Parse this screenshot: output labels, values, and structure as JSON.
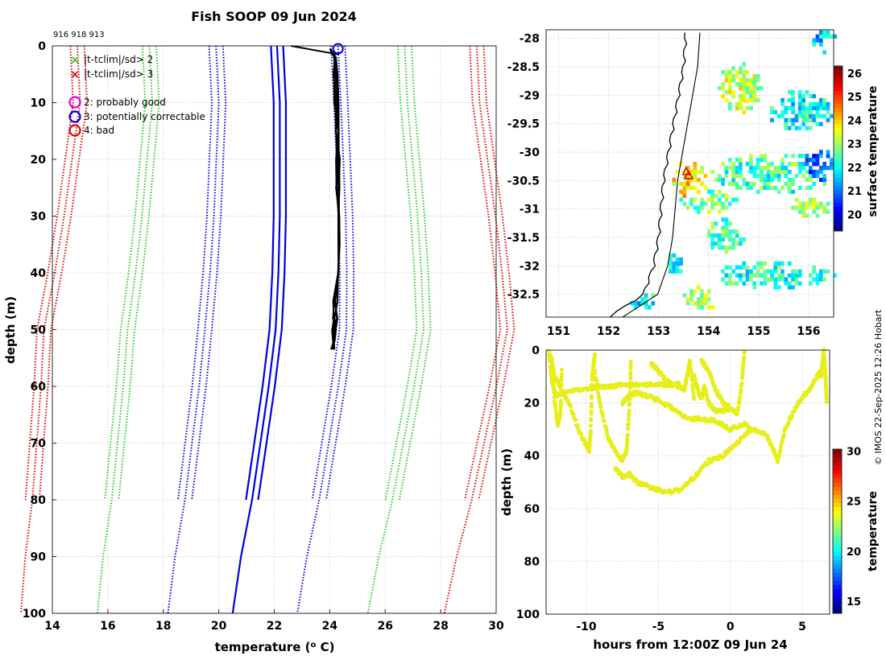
{
  "figure": {
    "title": "Fish SOOP 09 Jun 2024",
    "ids": "916 918 913",
    "copyright": "© IMOS 22-Sep-2025 12:26 Hobart"
  },
  "chart_data": [
    {
      "id": "profile",
      "type": "line",
      "xlabel": "temperature (",
      "xlabel_sup": "o",
      "xlabel_end": " C)",
      "ylabel": "depth (m)",
      "xlim": [
        14,
        30
      ],
      "ylim": [
        100,
        0
      ],
      "xticks": [
        14,
        16,
        18,
        20,
        22,
        24,
        26,
        28,
        30
      ],
      "yticks": [
        0,
        10,
        20,
        30,
        40,
        50,
        60,
        70,
        80,
        90,
        100
      ],
      "legend": [
        {
          "marker": "x",
          "color": "#22cc22",
          "label": "|t-tclim|/sd> 2"
        },
        {
          "marker": "x",
          "color": "#dd0000",
          "label": "|t-tclim|/sd> 3"
        },
        {
          "marker": "o",
          "color": "#dd00dd",
          "label": "2: probably good"
        },
        {
          "marker": "o",
          "color": "#0000dd",
          "label": "3: potentially correctable"
        },
        {
          "marker": "o",
          "color": "#dd0000",
          "label": "4: bad"
        }
      ],
      "climatology": {
        "depth": [
          0,
          10,
          20,
          30,
          40,
          50,
          60,
          70,
          80,
          90,
          100
        ],
        "mean": [
          22.1,
          22.2,
          22.2,
          22.2,
          22.15,
          22.05,
          21.8,
          21.5,
          21.2,
          20.8,
          20.5
        ],
        "offsets": [
          -7.2,
          -4.6,
          -2.2,
          2.2,
          4.6,
          7.2
        ],
        "offset_colors": [
          "#dd0000",
          "#22cc22",
          "#0000dd",
          "#0000dd",
          "#22cc22",
          "#dd0000"
        ],
        "solid_to_depth": 80
      },
      "observed": {
        "color": "#000000",
        "depth": [
          0.5,
          2,
          5,
          10,
          15,
          20,
          25,
          30,
          35,
          40,
          45,
          48,
          50,
          52,
          53.5
        ],
        "temp": [
          24.1,
          24.2,
          24.2,
          24.25,
          24.3,
          24.3,
          24.3,
          24.3,
          24.3,
          24.25,
          24.2,
          24.2,
          24.15,
          24.1,
          24.1
        ],
        "surface_start_temp": 22.6,
        "surface_start_depth": 0
      },
      "flag_marker": {
        "temp": 24.3,
        "depth": 0.5,
        "color": "#0000dd"
      }
    },
    {
      "id": "map",
      "type": "heatmap",
      "xlim": [
        150.75,
        156.5
      ],
      "ylim": [
        -32.9,
        -27.85
      ],
      "xticks": [
        151,
        152,
        153,
        154,
        155,
        156
      ],
      "yticks": [
        -28,
        -28.5,
        -29,
        -29.5,
        -30,
        -30.5,
        -31,
        -31.5,
        -32,
        -32.5
      ],
      "colorbar_label": "surface temperature",
      "colorbar_range": [
        19.3,
        26.3
      ],
      "colorbar_ticks": [
        20,
        21,
        22,
        23,
        24,
        25,
        26
      ],
      "ship_marker": {
        "lon": 153.6,
        "lat": -30.45,
        "color": "#dd0000"
      }
    },
    {
      "id": "timedepth",
      "type": "scatter",
      "xlabel": "hours from 12:00Z 09 Jun 24",
      "ylabel": "depth (m)",
      "xlim": [
        -12.8,
        6.9
      ],
      "ylim": [
        100,
        0
      ],
      "xticks": [
        -10,
        -5,
        0,
        5
      ],
      "yticks": [
        0,
        20,
        40,
        60,
        80,
        100
      ],
      "colorbar_label": "temperature",
      "colorbar_range": [
        13.8,
        30.2
      ],
      "colorbar_ticks": [
        15,
        20,
        25,
        30
      ],
      "point_color": "#e6ef1a",
      "tracks": [
        {
          "x": [
            -12.6,
            -12.4,
            -12.1,
            -11.5,
            -10.5,
            -9.5,
            -8.5,
            -7.5,
            -6.5,
            -5.5,
            -4.5,
            -3.5
          ],
          "y": [
            1,
            12,
            17,
            16,
            15,
            14,
            14,
            13,
            13,
            13,
            13,
            13
          ]
        },
        {
          "x": [
            -12.5,
            -12.2,
            -11.8,
            -11.2,
            -10.5,
            -10.0,
            -9.8,
            -9.7,
            -9.6,
            -9.4
          ],
          "y": [
            2,
            10,
            14,
            20,
            31,
            36,
            38,
            30,
            10,
            1
          ]
        },
        {
          "x": [
            -12.4,
            -12.2,
            -12.0,
            -11.8,
            -11.7
          ],
          "y": [
            3,
            20,
            28,
            24,
            6
          ]
        },
        {
          "x": [
            -9.5,
            -9.0,
            -8.5,
            -8.0,
            -7.5,
            -7.2,
            -7.0,
            -6.9
          ],
          "y": [
            5,
            22,
            33,
            38,
            42,
            38,
            20,
            4
          ]
        },
        {
          "x": [
            -7.5,
            -7.0,
            -6.5,
            -6.0,
            -5.0,
            -4.0,
            -3.0,
            -2.0,
            -1.0,
            0.0,
            1.0,
            1.5
          ],
          "y": [
            20,
            17,
            16,
            17,
            19,
            22,
            26,
            26,
            27,
            30,
            28,
            30
          ]
        },
        {
          "x": [
            -8.0,
            -7.5,
            -7.0,
            -6.5,
            -5.5,
            -4.5,
            -3.5,
            -2.5,
            -1.5,
            -0.5,
            0.5,
            1.5,
            2.5,
            3.0,
            3.3
          ],
          "y": [
            45,
            48,
            47,
            50,
            52,
            54,
            53,
            48,
            42,
            40,
            35,
            30,
            32,
            38,
            42
          ]
        },
        {
          "x": [
            -5.5,
            -5.0,
            -4.5,
            -4.0,
            -3.5,
            -3.2,
            -3.0,
            -2.8,
            -2.5
          ],
          "y": [
            5,
            8,
            11,
            13,
            14,
            15,
            10,
            4,
            20
          ]
        },
        {
          "x": [
            -2.5,
            -2.2,
            -2.0,
            -1.8,
            -1.5,
            -1.2,
            -1.0,
            -0.5,
            0.0
          ],
          "y": [
            10,
            16,
            18,
            14,
            20,
            22,
            23,
            23,
            22
          ]
        },
        {
          "x": [
            -2.0,
            -1.5,
            -1.0,
            -0.5,
            0.0,
            0.5,
            0.8,
            1.0
          ],
          "y": [
            4,
            8,
            15,
            20,
            22,
            24,
            12,
            0
          ]
        },
        {
          "x": [
            3.3,
            3.8,
            4.5,
            5.0,
            5.5,
            6.0,
            6.3
          ],
          "y": [
            42,
            30,
            22,
            18,
            15,
            10,
            8
          ]
        },
        {
          "x": [
            6.3,
            6.4,
            6.5,
            6.6,
            6.7
          ],
          "y": [
            10,
            5,
            0,
            8,
            20
          ]
        }
      ]
    }
  ]
}
